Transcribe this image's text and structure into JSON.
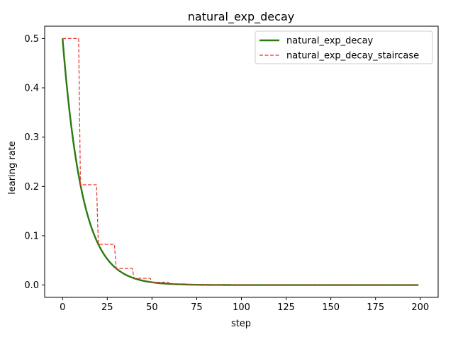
{
  "chart_data": {
    "type": "line",
    "title": "natural_exp_decay",
    "xlabel": "step",
    "ylabel": "learing rate",
    "xlim": [
      -10,
      210
    ],
    "ylim": [
      -0.025,
      0.525
    ],
    "xticks": [
      0,
      25,
      50,
      75,
      100,
      125,
      150,
      175,
      200
    ],
    "yticks": [
      0.0,
      0.1,
      0.2,
      0.3,
      0.4,
      0.5
    ],
    "grid": false,
    "legend_position": "top-right",
    "series": [
      {
        "name": "natural_exp_decay",
        "style": "solid",
        "color": "#2a7a10",
        "generator": {
          "kind": "exp",
          "initial": 0.5,
          "decay_rate": 0.9,
          "decay_steps": 10,
          "staircase": false,
          "x_start": 0,
          "x_end": 199
        }
      },
      {
        "name": "natural_exp_decay_staircase",
        "style": "dashed",
        "color": "#e8312a",
        "generator": {
          "kind": "exp",
          "initial": 0.5,
          "decay_rate": 0.9,
          "decay_steps": 10,
          "staircase": true,
          "x_start": 0,
          "x_end": 199
        }
      }
    ]
  }
}
